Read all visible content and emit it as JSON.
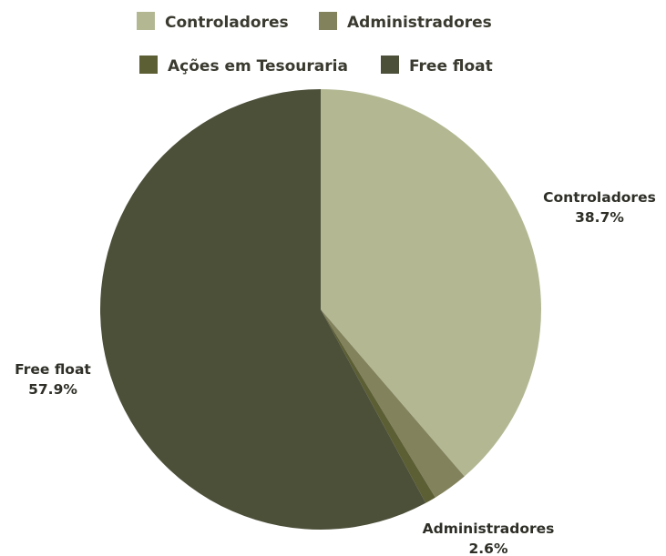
{
  "chart_data": {
    "type": "pie",
    "categories": [
      "Controladores",
      "Administradores",
      "Ações em Tesouraria",
      "Free float"
    ],
    "values": [
      38.7,
      2.6,
      0.8,
      57.9
    ],
    "unit": "%",
    "colors": [
      "#b3b893",
      "#82825c",
      "#5c5e34",
      "#4c5039"
    ],
    "labels": [
      {
        "name": "Controladores",
        "value": "38.7%"
      },
      {
        "name": "Administradores",
        "value": "2.6%"
      },
      {
        "name": "Free float",
        "value": "57.9%"
      }
    ],
    "legend": [
      {
        "label": "Controladores"
      },
      {
        "label": "Administradores"
      },
      {
        "label": "Ações em Tesouraria"
      },
      {
        "label": "Free float"
      }
    ],
    "legend_placement": "top",
    "start_angle": "12 o'clock, clockwise"
  }
}
